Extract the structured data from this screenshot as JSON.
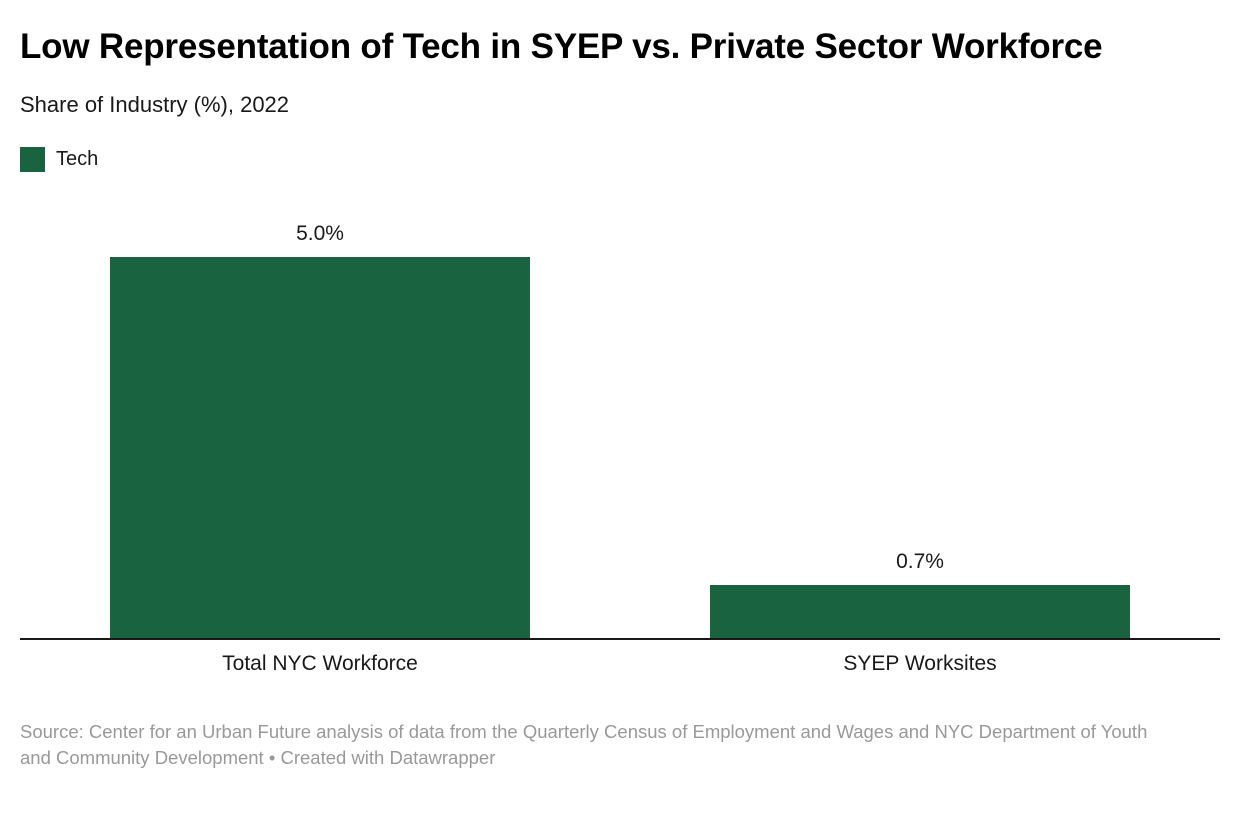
{
  "header": {
    "title": "Low Representation of Tech in SYEP vs. Private Sector Workforce",
    "subtitle": "Share of Industry (%), 2022"
  },
  "chart_data": {
    "type": "bar",
    "title": "Low Representation of Tech in SYEP vs. Private Sector Workforce",
    "subtitle": "Share of Industry (%), 2022",
    "categories": [
      "Total NYC Workforce",
      "SYEP Worksites"
    ],
    "series": [
      {
        "name": "Tech",
        "values": [
          5.0,
          0.7
        ],
        "color": "#1a6340"
      }
    ],
    "value_labels": [
      "5.0%",
      "0.7%"
    ],
    "xlabel": "",
    "ylabel": "Share of Industry (%)",
    "ylim": [
      0,
      5.0
    ],
    "grid": false,
    "y_axis_ticks_visible": false,
    "legend_position": "top-left"
  },
  "legend": {
    "items": [
      {
        "label": "Tech",
        "color": "#1a6340"
      }
    ]
  },
  "footer": {
    "source": "Source: Center for an Urban Future analysis of data from the Quarterly Census of Employment and Wages and NYC Department of Youth and Community Development",
    "separator": "•",
    "attribution": "Created with Datawrapper"
  },
  "colors": {
    "bar": "#1a6340",
    "axis_line": "#191919",
    "text": "#191919",
    "title_text": "#000000",
    "footer_text": "#999999",
    "background": "#ffffff"
  }
}
